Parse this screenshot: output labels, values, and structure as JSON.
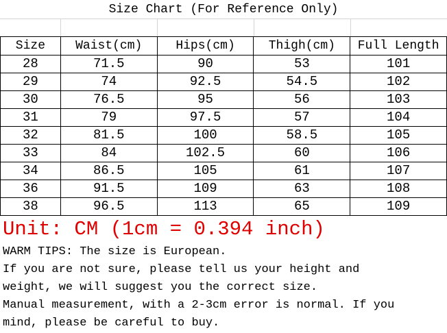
{
  "title": "Size Chart  (For Reference Only)",
  "table": {
    "headers": [
      "Size",
      "Waist(cm)",
      "Hips(cm)",
      "Thigh(cm)",
      "Full Length"
    ],
    "rows": [
      [
        "28",
        "71.5",
        "90",
        "53",
        "101"
      ],
      [
        "29",
        "74",
        "92.5",
        "54.5",
        "102"
      ],
      [
        "30",
        "76.5",
        "95",
        "56",
        "103"
      ],
      [
        "31",
        "79",
        "97.5",
        "57",
        "104"
      ],
      [
        "32",
        "81.5",
        "100",
        "58.5",
        "105"
      ],
      [
        "33",
        "84",
        "102.5",
        "60",
        "106"
      ],
      [
        "34",
        "86.5",
        "105",
        "61",
        "107"
      ],
      [
        "36",
        "91.5",
        "109",
        "63",
        "108"
      ],
      [
        "38",
        "96.5",
        "113",
        "65",
        "109"
      ]
    ]
  },
  "unit_note": "Unit: CM (1cm = 0.394 inch)",
  "unit_color": "#e00000",
  "tips": [
    "WARM TIPS: The size is European.",
    "If you are not sure, please tell us your height and",
    "weight, we will suggest you the correct size.",
    "Manual measurement, with a 2-3cm error is normal. If you",
    "mind, please be careful to buy."
  ]
}
